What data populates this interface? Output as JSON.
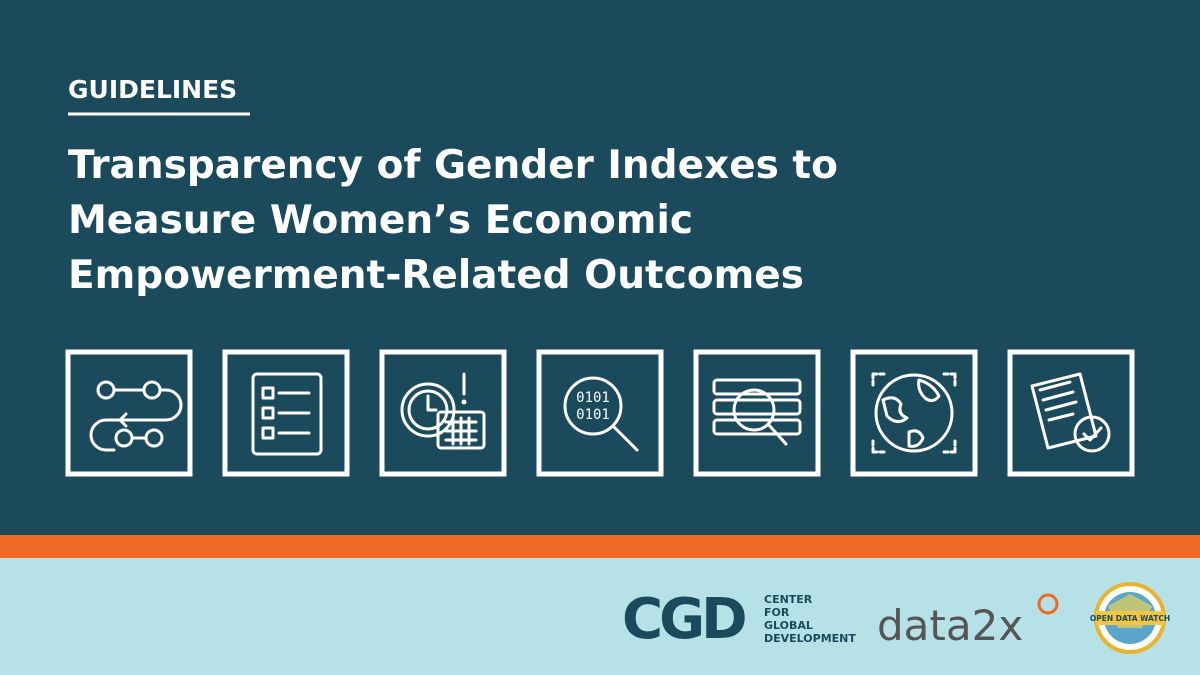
{
  "header": {
    "label": "GUIDELINES",
    "title_lines": [
      "Transparency of Gender Indexes to",
      "Measure Women’s Economic",
      "Empowerment-Related Outcomes"
    ]
  },
  "logos": {
    "cgd": {
      "mark": "CGD",
      "lines": [
        "CENTER",
        "FOR",
        "GLOBAL",
        "DEVELOPMENT"
      ]
    },
    "data2x": "data2x",
    "odw": "OPEN DATA WATCH"
  }
}
